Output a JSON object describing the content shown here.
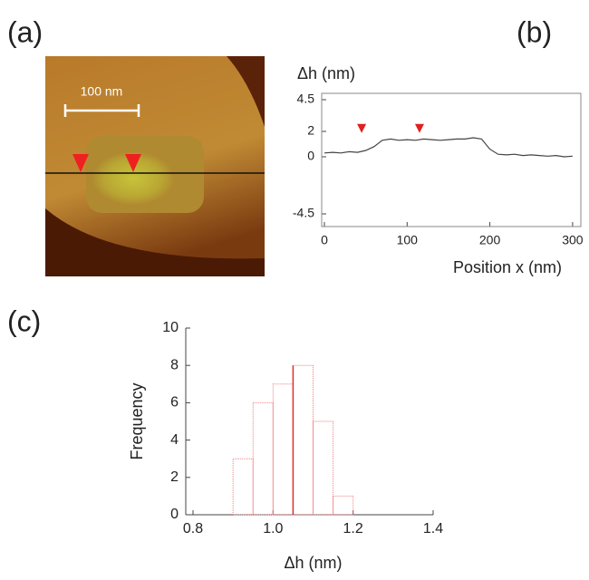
{
  "image_panel": {
    "panel_label": "(a)",
    "scale_bar_label": "100 nm"
  },
  "chart_data": [
    {
      "type": "line",
      "panel_label": "(b)",
      "y_label": "Δh (nm)",
      "x_label": "Position x (nm)",
      "x": [
        0,
        10,
        20,
        30,
        40,
        50,
        60,
        70,
        80,
        90,
        100,
        110,
        120,
        130,
        140,
        150,
        160,
        170,
        180,
        190,
        200,
        210,
        220,
        230,
        240,
        250,
        260,
        270,
        280,
        290,
        300
      ],
      "series": [
        {
          "color": "#444444",
          "values": [
            0.3,
            0.35,
            0.3,
            0.4,
            0.35,
            0.5,
            0.8,
            1.3,
            1.4,
            1.3,
            1.35,
            1.3,
            1.4,
            1.35,
            1.3,
            1.35,
            1.4,
            1.4,
            1.5,
            1.4,
            0.6,
            0.2,
            0.15,
            0.2,
            0.1,
            0.15,
            0.1,
            0.05,
            0.1,
            0.0,
            0.05
          ]
        }
      ],
      "marker_x": [
        45,
        115
      ],
      "marker_color": "#e02020",
      "xlim": [
        0,
        310
      ],
      "xticks": [
        0,
        100,
        200,
        300
      ],
      "ylim": [
        -5.5,
        5
      ],
      "yticks": [
        4.5,
        2,
        0,
        -4.5
      ]
    },
    {
      "type": "histogram",
      "panel_label": "(c)",
      "x_label": "Δh (nm)",
      "y_label": "Frequency",
      "bins": [
        0.9,
        0.95,
        1.0,
        1.05,
        1.1,
        1.15,
        1.2
      ],
      "values": [
        3,
        6,
        7,
        8,
        5,
        1
      ],
      "color": "#f08080",
      "mean_line": 1.05,
      "mean_color": "#e03030",
      "xlim": [
        0.8,
        1.4
      ],
      "xticks": [
        0.8,
        {
          "value": 1,
          "label": "1.0"
        },
        1.2,
        1.4
      ],
      "ylim": [
        0,
        10
      ],
      "yticks": [
        0,
        2,
        4,
        6,
        8,
        10
      ]
    }
  ]
}
